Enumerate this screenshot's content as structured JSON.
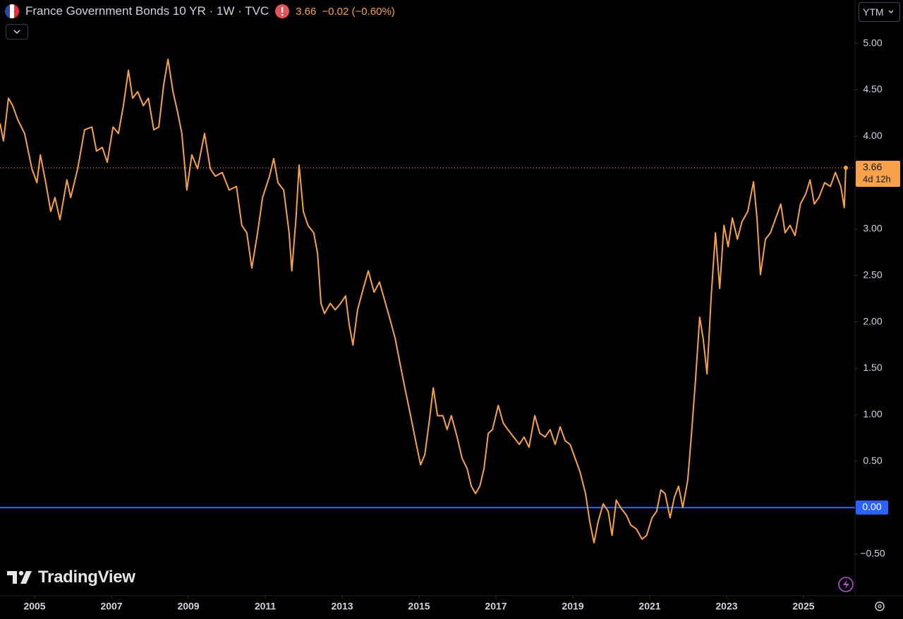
{
  "header": {
    "price": "3.66",
    "change": "−0.02 (−0.60%)"
  },
  "controls": {
    "scale": "YTM"
  },
  "branding": "TradingView",
  "chart_data": {
    "type": "line",
    "title": "France Government Bonds 10 YR · 1W · TVC",
    "color": "#f7a24b",
    "x": [
      2004.1,
      2004.19,
      2004.32,
      2004.43,
      2004.56,
      2004.74,
      2004.93,
      2005.06,
      2005.15,
      2005.29,
      2005.42,
      2005.53,
      2005.66,
      2005.84,
      2005.94,
      2006.12,
      2006.3,
      2006.49,
      2006.61,
      2006.76,
      2006.89,
      2007.04,
      2007.18,
      2007.31,
      2007.44,
      2007.55,
      2007.68,
      2007.83,
      2007.96,
      2008.1,
      2008.23,
      2008.36,
      2008.47,
      2008.6,
      2008.72,
      2008.83,
      2008.96,
      2009.09,
      2009.24,
      2009.42,
      2009.57,
      2009.7,
      2009.88,
      2010.06,
      2010.25,
      2010.39,
      2010.52,
      2010.65,
      2010.8,
      2010.93,
      2011.11,
      2011.22,
      2011.33,
      2011.48,
      2011.62,
      2011.69,
      2011.8,
      2011.88,
      2011.99,
      2012.11,
      2012.26,
      2012.36,
      2012.45,
      2012.54,
      2012.69,
      2012.82,
      2012.96,
      2013.09,
      2013.18,
      2013.28,
      2013.4,
      2013.55,
      2013.68,
      2013.83,
      2013.97,
      2014.1,
      2014.23,
      2014.38,
      2014.52,
      2014.65,
      2014.78,
      2014.93,
      2015.04,
      2015.15,
      2015.26,
      2015.37,
      2015.48,
      2015.62,
      2015.73,
      2015.84,
      2015.99,
      2016.12,
      2016.25,
      2016.36,
      2016.47,
      2016.58,
      2016.69,
      2016.8,
      2016.91,
      2017.06,
      2017.19,
      2017.31,
      2017.46,
      2017.61,
      2017.73,
      2017.86,
      2018.01,
      2018.14,
      2018.28,
      2018.41,
      2018.54,
      2018.67,
      2018.8,
      2018.93,
      2019.06,
      2019.19,
      2019.33,
      2019.44,
      2019.55,
      2019.66,
      2019.79,
      2019.92,
      2020.02,
      2020.13,
      2020.24,
      2020.39,
      2020.51,
      2020.65,
      2020.8,
      2020.92,
      2021.06,
      2021.18,
      2021.29,
      2021.4,
      2021.53,
      2021.64,
      2021.75,
      2021.86,
      2021.99,
      2022.08,
      2022.19,
      2022.3,
      2022.39,
      2022.49,
      2022.6,
      2022.71,
      2022.82,
      2022.93,
      2023.04,
      2023.15,
      2023.28,
      2023.4,
      2023.55,
      2023.7,
      2023.79,
      2023.88,
      2024.01,
      2024.14,
      2024.28,
      2024.41,
      2024.52,
      2024.65,
      2024.78,
      2024.92,
      2025.06,
      2025.17,
      2025.28,
      2025.4,
      2025.55,
      2025.7,
      2025.83,
      2025.97,
      2026.06,
      2026.1
    ],
    "values": [
      4.14,
      3.95,
      4.41,
      4.33,
      4.18,
      4.03,
      3.65,
      3.5,
      3.8,
      3.5,
      3.19,
      3.34,
      3.1,
      3.53,
      3.34,
      3.65,
      4.07,
      4.1,
      3.84,
      3.88,
      3.72,
      4.1,
      4.03,
      4.33,
      4.71,
      4.41,
      4.48,
      4.33,
      4.41,
      4.07,
      4.1,
      4.56,
      4.83,
      4.48,
      4.26,
      4.03,
      3.42,
      3.8,
      3.65,
      4.03,
      3.65,
      3.57,
      3.61,
      3.42,
      3.46,
      3.04,
      2.96,
      2.58,
      2.96,
      3.34,
      3.57,
      3.76,
      3.5,
      3.42,
      2.96,
      2.55,
      3.12,
      3.69,
      3.19,
      3.04,
      2.96,
      2.74,
      2.2,
      2.09,
      2.2,
      2.13,
      2.2,
      2.28,
      1.98,
      1.75,
      2.13,
      2.36,
      2.55,
      2.32,
      2.43,
      2.24,
      2.05,
      1.82,
      1.52,
      1.25,
      0.99,
      0.68,
      0.46,
      0.57,
      0.91,
      1.29,
      0.99,
      0.99,
      0.84,
      0.99,
      0.76,
      0.53,
      0.42,
      0.23,
      0.15,
      0.23,
      0.42,
      0.8,
      0.84,
      1.1,
      0.91,
      0.84,
      0.76,
      0.68,
      0.76,
      0.65,
      0.99,
      0.8,
      0.76,
      0.84,
      0.68,
      0.87,
      0.72,
      0.68,
      0.53,
      0.38,
      0.15,
      -0.15,
      -0.38,
      -0.15,
      0.04,
      -0.04,
      -0.3,
      0.08,
      0.0,
      -0.08,
      -0.19,
      -0.23,
      -0.34,
      -0.3,
      -0.11,
      -0.04,
      0.19,
      0.15,
      -0.11,
      0.11,
      0.23,
      0.0,
      0.3,
      0.76,
      1.37,
      2.05,
      1.82,
      1.44,
      2.28,
      2.96,
      2.36,
      3.04,
      2.81,
      3.12,
      2.89,
      3.08,
      3.19,
      3.51,
      3.12,
      2.51,
      2.89,
      2.96,
      3.12,
      3.27,
      2.96,
      3.04,
      2.93,
      3.27,
      3.38,
      3.53,
      3.27,
      3.34,
      3.5,
      3.46,
      3.61,
      3.46,
      3.23,
      3.66
    ],
    "xlim": [
      2004.1,
      2026.34
    ],
    "xticks": [
      2005,
      2007,
      2009,
      2011,
      2013,
      2015,
      2017,
      2019,
      2021,
      2023,
      2025
    ],
    "ylim": [
      -0.95,
      5.24
    ],
    "yticks": [
      {
        "value": 5,
        "label": "5.00"
      },
      {
        "value": 4.5,
        "label": "4.50"
      },
      {
        "value": 4,
        "label": "4.00"
      },
      {
        "value": 3.5,
        "label": "3.50"
      },
      {
        "value": 3,
        "label": "3.00"
      },
      {
        "value": 2.5,
        "label": "2.50"
      },
      {
        "value": 2,
        "label": "2.00"
      },
      {
        "value": 1.5,
        "label": "1.50"
      },
      {
        "value": 1,
        "label": "1.00"
      },
      {
        "value": 0.5,
        "label": "0.50"
      },
      {
        "value": -0.5,
        "label": "−0.50"
      }
    ],
    "grid": false,
    "last_price": {
      "value": 3.66,
      "label": "3.66",
      "countdown": "4d 12h"
    },
    "reference_line": {
      "value": 0,
      "label": "0.00",
      "color": "#2962ff"
    }
  }
}
